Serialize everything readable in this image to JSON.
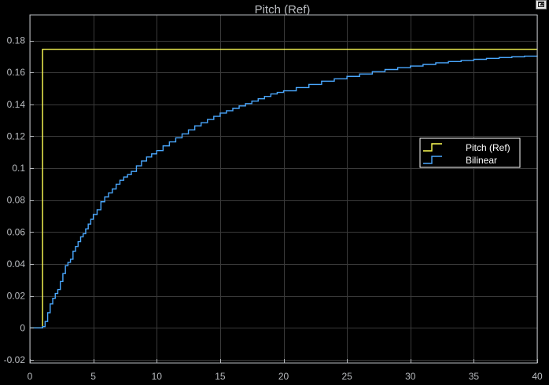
{
  "colors": {
    "background": "#000000",
    "axes_background": "#000000",
    "axes_edge": "#b9bcc0",
    "grid": "#3a3a3a",
    "text": "#b9bcc0",
    "legend_text": "#ffffff",
    "legend_border": "#ffffff"
  },
  "toolbar": {
    "undock_icon": "undock-icon"
  },
  "chart_data": {
    "type": "line",
    "title": "Pitch (Ref)",
    "xlabel": "",
    "ylabel": "",
    "xlim": [
      0,
      40
    ],
    "ylim": [
      -0.022,
      0.196
    ],
    "xticks": [
      0,
      5,
      10,
      15,
      20,
      25,
      30,
      35,
      40
    ],
    "xtick_labels": [
      "0",
      "5",
      "10",
      "15",
      "20",
      "25",
      "30",
      "35",
      "40"
    ],
    "yticks": [
      -0.02,
      0,
      0.02,
      0.04,
      0.06,
      0.08,
      0.1,
      0.12,
      0.14,
      0.16,
      0.18
    ],
    "ytick_labels": [
      "-0.02",
      "0",
      "0.02",
      "0.04",
      "0.06",
      "0.08",
      "0.1",
      "0.12",
      "0.14",
      "0.16",
      "0.18"
    ],
    "grid": true,
    "legend_position": "right",
    "series": [
      {
        "name": "Pitch (Ref)",
        "color": "#ffff55",
        "style": "stairs",
        "x": [
          0,
          1,
          40
        ],
        "y": [
          0,
          0.1745,
          0.1745
        ]
      },
      {
        "name": "Bilinear",
        "color": "#4aa8ff",
        "style": "stairs",
        "x": [
          0,
          1.0,
          1.2,
          1.4,
          1.6,
          1.8,
          2.0,
          2.2,
          2.4,
          2.6,
          2.8,
          3.0,
          3.2,
          3.4,
          3.6,
          3.8,
          4.0,
          4.2,
          4.4,
          4.6,
          4.8,
          5.0,
          5.3,
          5.6,
          5.9,
          6.2,
          6.5,
          6.8,
          7.1,
          7.4,
          7.7,
          8.0,
          8.4,
          8.8,
          9.2,
          9.6,
          10.0,
          10.5,
          11.0,
          11.5,
          12.0,
          12.5,
          13.0,
          13.5,
          14.0,
          14.5,
          15.0,
          15.5,
          16.0,
          16.5,
          17.0,
          17.5,
          18.0,
          18.5,
          19.0,
          19.5,
          20.0,
          21.0,
          22.0,
          23.0,
          24.0,
          25.0,
          26.0,
          27.0,
          28.0,
          29.0,
          30.0,
          31.0,
          32.0,
          33.0,
          34.0,
          35.0,
          36.0,
          37.0,
          38.0,
          39.0,
          40.0
        ],
        "y": [
          0,
          0.0008,
          0.004,
          0.0095,
          0.015,
          0.0185,
          0.0215,
          0.024,
          0.029,
          0.034,
          0.039,
          0.041,
          0.043,
          0.048,
          0.051,
          0.054,
          0.057,
          0.059,
          0.062,
          0.065,
          0.068,
          0.071,
          0.074,
          0.079,
          0.082,
          0.0845,
          0.087,
          0.09,
          0.0925,
          0.0945,
          0.096,
          0.098,
          0.1015,
          0.1045,
          0.107,
          0.109,
          0.111,
          0.114,
          0.1165,
          0.119,
          0.1215,
          0.124,
          0.1265,
          0.1285,
          0.1305,
          0.1325,
          0.1345,
          0.136,
          0.1375,
          0.139,
          0.1405,
          0.142,
          0.1435,
          0.145,
          0.1465,
          0.1475,
          0.1485,
          0.1505,
          0.1525,
          0.1545,
          0.156,
          0.1575,
          0.159,
          0.1605,
          0.1618,
          0.163,
          0.164,
          0.165,
          0.166,
          0.1668,
          0.1675,
          0.1682,
          0.1688,
          0.1693,
          0.1698,
          0.1702,
          0.1706
        ]
      }
    ]
  }
}
